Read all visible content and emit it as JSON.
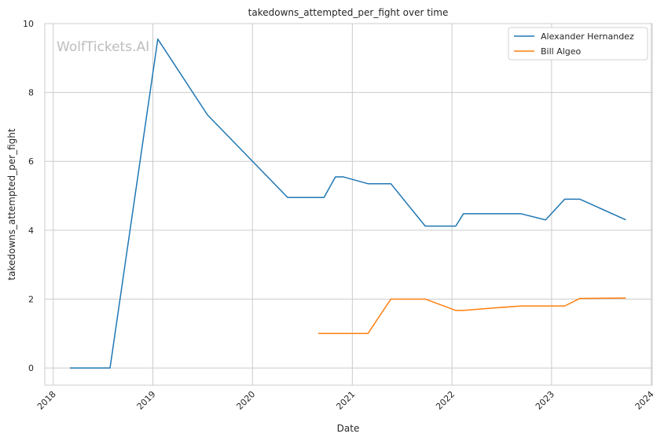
{
  "chart_data": {
    "type": "line",
    "title": "takedowns_attempted_per_fight over time",
    "xlabel": "Date",
    "ylabel": "takedowns_attempted_per_fight",
    "watermark": "WolfTickets.AI",
    "x_ticks": [
      "2018",
      "2019",
      "2020",
      "2021",
      "2022",
      "2023",
      "2024"
    ],
    "y_ticks": [
      "0",
      "2",
      "4",
      "6",
      "8",
      "10"
    ],
    "xlim": [
      "2017-12-01",
      "2024-01-05"
    ],
    "ylim": [
      -0.5,
      10
    ],
    "grid": true,
    "legend_position": "top-right",
    "series": [
      {
        "name": "Alexander Hernandez",
        "color": "#1f77b4",
        "points": [
          {
            "x": "2018-03-03",
            "y": 0
          },
          {
            "x": "2018-07-28",
            "y": 0
          },
          {
            "x": "2019-01-19",
            "y": 9.55
          },
          {
            "x": "2019-07-20",
            "y": 7.35
          },
          {
            "x": "2020-05-09",
            "y": 4.95
          },
          {
            "x": "2020-09-19",
            "y": 4.95
          },
          {
            "x": "2020-10-31",
            "y": 5.55
          },
          {
            "x": "2020-11-28",
            "y": 5.55
          },
          {
            "x": "2021-02-27",
            "y": 5.35
          },
          {
            "x": "2021-05-22",
            "y": 5.35
          },
          {
            "x": "2021-09-25",
            "y": 4.12
          },
          {
            "x": "2022-01-15",
            "y": 4.12
          },
          {
            "x": "2022-02-12",
            "y": 4.48
          },
          {
            "x": "2022-09-10",
            "y": 4.48
          },
          {
            "x": "2022-12-10",
            "y": 4.3
          },
          {
            "x": "2023-02-18",
            "y": 4.9
          },
          {
            "x": "2023-04-15",
            "y": 4.9
          },
          {
            "x": "2023-09-30",
            "y": 4.3
          }
        ]
      },
      {
        "name": "Bill Algeo",
        "color": "#ff7f0e",
        "points": [
          {
            "x": "2020-08-29",
            "y": 1.0
          },
          {
            "x": "2021-02-27",
            "y": 1.0
          },
          {
            "x": "2021-05-22",
            "y": 2.0
          },
          {
            "x": "2021-09-25",
            "y": 2.0
          },
          {
            "x": "2022-01-15",
            "y": 1.67
          },
          {
            "x": "2022-02-12",
            "y": 1.67
          },
          {
            "x": "2022-06-18",
            "y": 1.75
          },
          {
            "x": "2022-09-10",
            "y": 1.8
          },
          {
            "x": "2023-02-18",
            "y": 1.8
          },
          {
            "x": "2023-04-15",
            "y": 2.02
          },
          {
            "x": "2023-09-30",
            "y": 2.03
          }
        ]
      }
    ]
  }
}
